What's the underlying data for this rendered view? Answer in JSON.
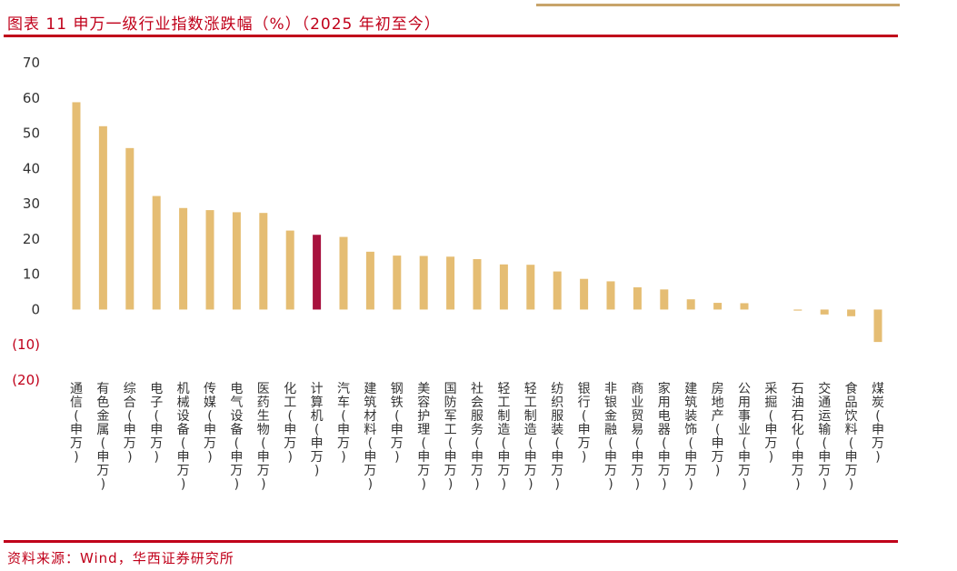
{
  "header": {
    "title": "图表 11 申万一级行业指数涨跌幅（%）（2025 年初至今）"
  },
  "footer": {
    "source": "资料来源：Wind，华西证券研究所"
  },
  "colors": {
    "bar": "#e5bd73",
    "highlight": "#a8123e",
    "brand": "#c0001a",
    "axis_text": "#333333",
    "negative_text": "#c0001a"
  },
  "chart_data": {
    "type": "bar",
    "title": "图表 11 申万一级行业指数涨跌幅（%）（2025 年初至今）",
    "xlabel": "",
    "ylabel": "",
    "ylim": [
      -20,
      70
    ],
    "yticks": [
      70,
      60,
      50,
      40,
      30,
      20,
      10,
      0,
      -10,
      -20
    ],
    "ytick_labels": [
      "70",
      "60",
      "50",
      "40",
      "30",
      "20",
      "10",
      "0",
      "(10)",
      "(20)"
    ],
    "grid": false,
    "highlight_category": "计算机(申万)",
    "categories": [
      "通信(申万)",
      "有色金属(申万)",
      "综合(申万)",
      "电子(申万)",
      "机械设备(申万)",
      "传媒(申万)",
      "电气设备(申万)",
      "医药生物(申万)",
      "化工(申万)",
      "计算机(申万)",
      "汽车(申万)",
      "建筑材料(申万)",
      "钢铁(申万)",
      "美容护理(申万)",
      "国防军工(申万)",
      "社会服务(申万)",
      "轻工制造(申万)",
      "轻工制造(申万)",
      "纺织服装(申万)",
      "银行(申万)",
      "非银金融(申万)",
      "商业贸易(申万)",
      "家用电器(申万)",
      "建筑装饰(申万)",
      "房地产(申万)",
      "公用事业(申万)",
      "采掘(申万)",
      "石油石化(申万)",
      "交通运输(申万)",
      "食品饮料(申万)",
      "煤炭(申万)"
    ],
    "values": [
      58.8,
      52.0,
      45.8,
      32.2,
      28.8,
      28.2,
      27.6,
      27.4,
      22.4,
      21.2,
      20.6,
      16.4,
      15.3,
      15.2,
      15.0,
      14.3,
      12.8,
      12.7,
      10.8,
      8.7,
      8.0,
      6.3,
      5.7,
      2.9,
      1.9,
      1.8,
      0.0,
      -0.3,
      -1.4,
      -1.9,
      -9.2
    ]
  }
}
